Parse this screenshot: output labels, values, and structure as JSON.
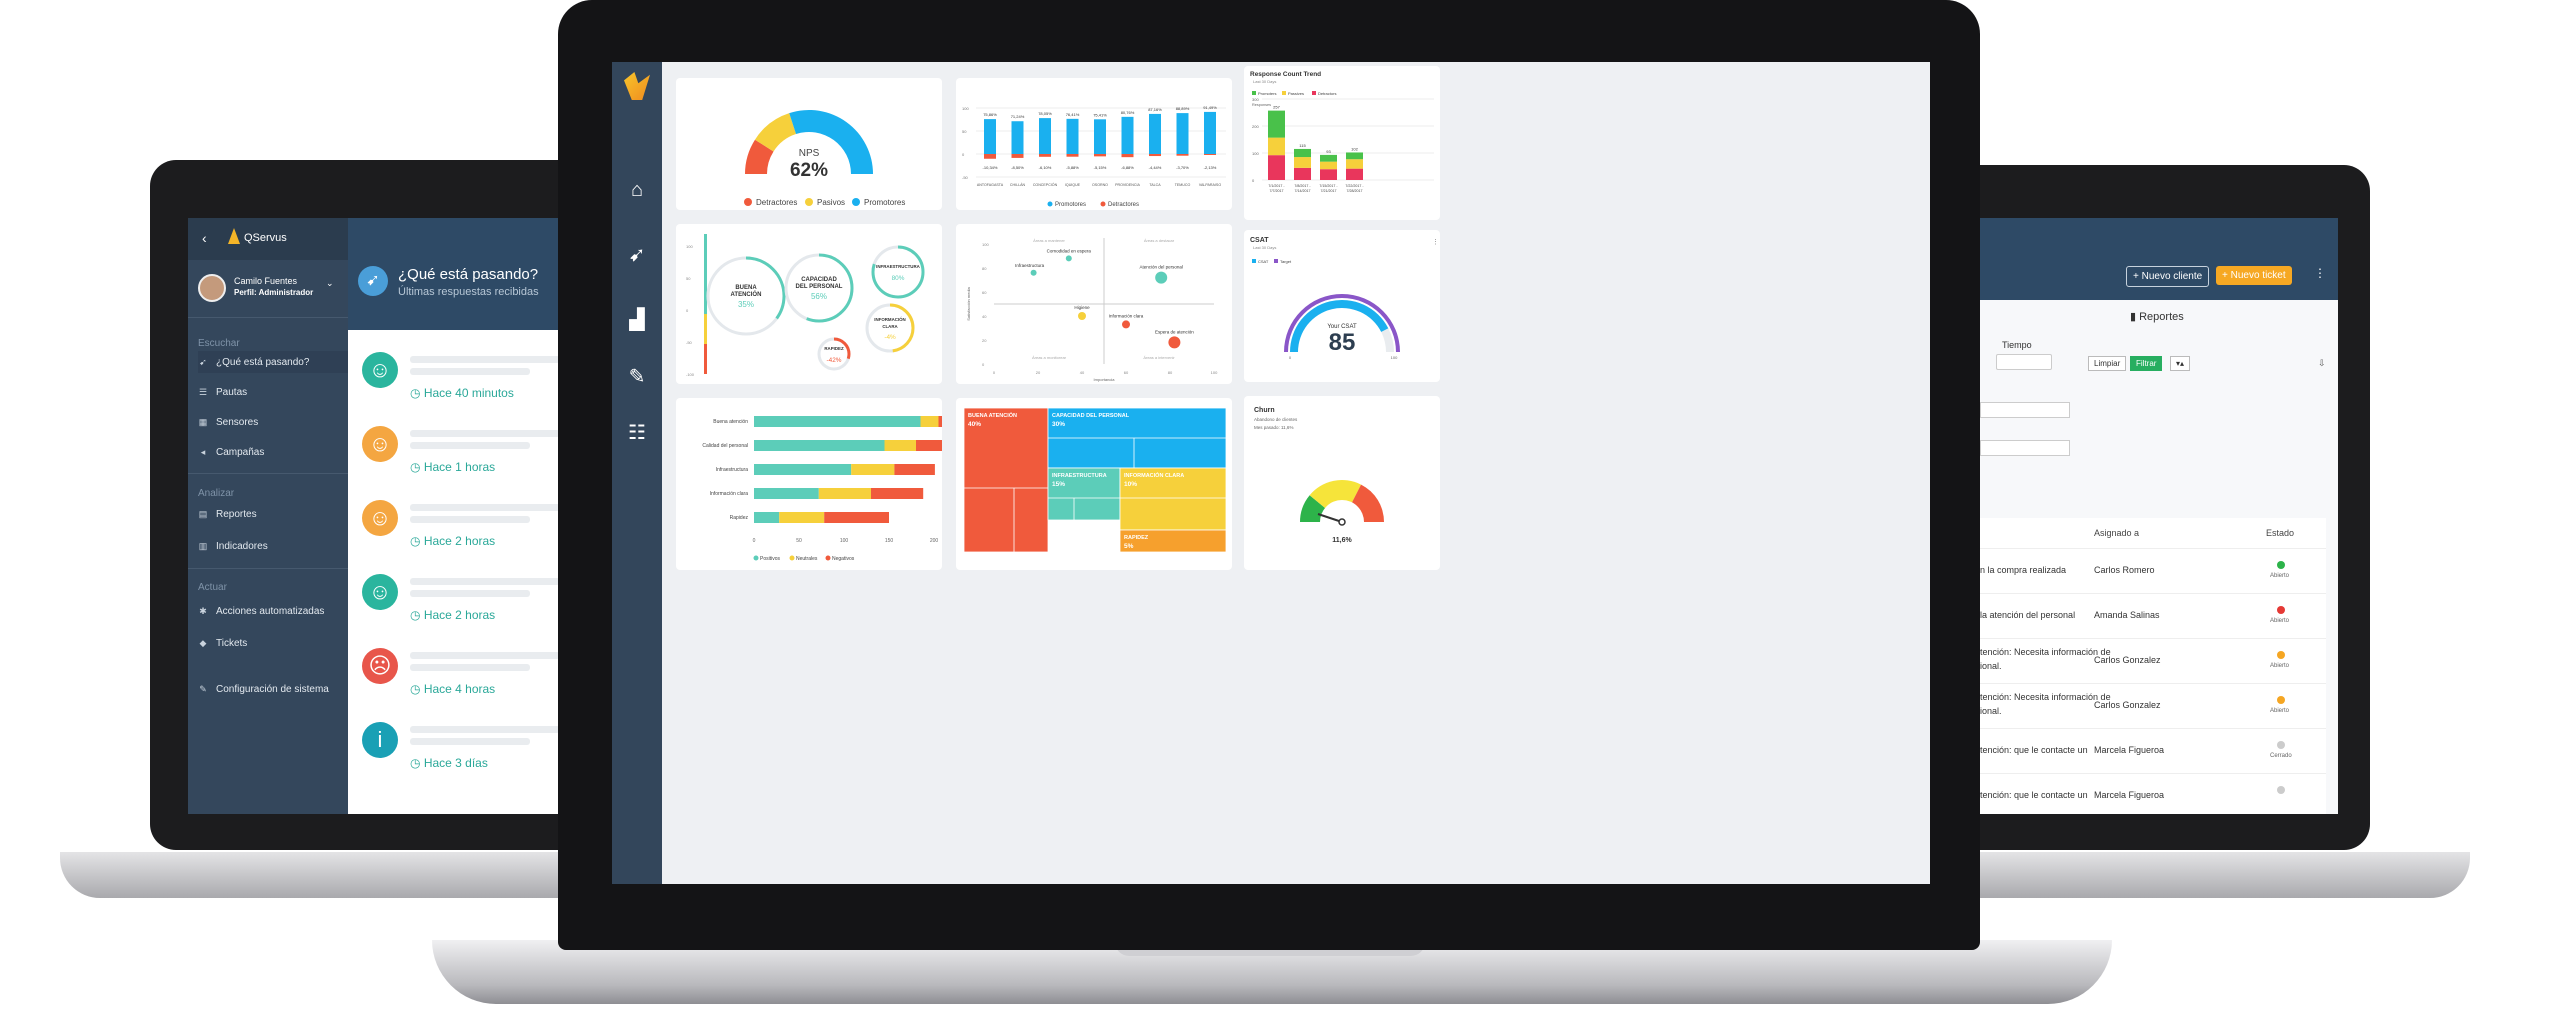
{
  "left_app": {
    "brand": "QServus",
    "user_name": "Camilo Fuentes",
    "user_role": "Perfil: Administrador",
    "header_title": "¿Qué está pasando?",
    "header_subtitle": "Últimas respuestas recibidas",
    "sections": {
      "escuchar": "Escuchar",
      "analizar": "Analizar",
      "actuar": "Actuar"
    },
    "nav": {
      "que_pasa": "¿Qué está pasando?",
      "pautas": "Pautas",
      "sensores": "Sensores",
      "campanas": "Campañas",
      "reportes": "Reportes",
      "indicadores": "Indicadores",
      "acciones": "Acciones automatizadas",
      "tickets": "Tickets",
      "config": "Configuración de sistema"
    },
    "feed": [
      {
        "time": "Hace 40 minutos",
        "mood": "happy",
        "color": "#2ab59e"
      },
      {
        "time": "Hace 1 horas",
        "mood": "neutral",
        "color": "#f4a641"
      },
      {
        "time": "Hace 2 horas",
        "mood": "neutral",
        "color": "#f4a641"
      },
      {
        "time": "Hace 2 horas",
        "mood": "happy",
        "color": "#2ab59e"
      },
      {
        "time": "Hace 4 horas",
        "mood": "sad",
        "color": "#e8564b"
      },
      {
        "time": "Hace 3 días",
        "mood": "info",
        "color": "#1aa0b5"
      }
    ]
  },
  "right_app": {
    "btn_nuevo_cliente": "+ Nuevo cliente",
    "btn_nuevo_ticket": "+ Nuevo ticket",
    "page_title": "Reportes",
    "tiempo_label": "Tiempo",
    "btn_limpiar": "Limpiar",
    "btn_filtrar": "Filtrar",
    "col_asignado": "Asignado a",
    "col_estado": "Estado",
    "rows": [
      {
        "desc": "n la compra realizada",
        "asignado": "Carlos Romero",
        "estado": "Abierto",
        "color": "#2db34a"
      },
      {
        "desc": "la atención del personal",
        "asignado": "Amanda Salinas",
        "estado": "Abierto",
        "color": "#e53935"
      },
      {
        "desc": "tención: Necesita información de",
        "desc2": "ional.",
        "asignado": "Carlos Gonzalez",
        "estado": "Abierto",
        "color": "#f5a623"
      },
      {
        "desc": "tención: Necesita información de",
        "desc2": "ional.",
        "asignado": "Carlos Gonzalez",
        "estado": "Abierto",
        "color": "#f5a623"
      },
      {
        "desc": "tención: que le contacte un",
        "asignado": "Marcela Figueroa",
        "estado": "Cerrado",
        "color": "#cccccc"
      },
      {
        "desc": "tención: que le contacte un",
        "asignado": "Marcela Figueroa",
        "estado": "",
        "color": "#cccccc"
      }
    ]
  },
  "colors": {
    "promotores": "#1ab0ef",
    "pasivos": "#f6d03b",
    "detractores": "#f05a3c",
    "positivos": "#5ccdb9",
    "neutrales": "#f6d03b",
    "negativos": "#f05a3c",
    "sidebar": "#33465b"
  },
  "nps": {
    "label": "NPS",
    "value": "62%",
    "legend": [
      "Detractores",
      "Pasivos",
      "Promotores"
    ]
  },
  "chart_data": [
    {
      "type": "bar",
      "id": "nps-by-city",
      "categories": [
        "ANTOFAGASTA",
        "CHILLÁN",
        "CONCEPCIÓN",
        "IQUIQUE",
        "OSORNO",
        "PROVIDENCIA",
        "TALCA",
        "TEMUCO",
        "VALPARAISO"
      ],
      "series": [
        {
          "name": "Promotores",
          "values": [
            75.86,
            71.24,
            78.05,
            76.41,
            75.41,
            80.76,
            87.16,
            88.89,
            91.49
          ],
          "labels": [
            "75,86%",
            "71,24%",
            "78,05%",
            "76,41%",
            "75,41%",
            "80,76%",
            "87,16%",
            "88,89%",
            "91,49%"
          ]
        },
        {
          "name": "Detractores",
          "values": [
            -10.34,
            -8.5,
            -6.1,
            -5.88,
            -5.15,
            -6.88,
            -4.44,
            -3.7,
            -2.13
          ],
          "labels": [
            "-10,34%",
            "-8,50%",
            "-6,10%",
            "-5,88%",
            "-5,15%",
            "-6,88%",
            "-4,44%",
            "-3,70%",
            "-2,13%"
          ]
        }
      ],
      "yticks": [
        "100",
        "50",
        "0",
        "-50"
      ],
      "legend": [
        "Promotores",
        "Detractores"
      ]
    },
    {
      "type": "bar",
      "id": "response-count-trend",
      "title": "Response Count Trend",
      "subtitle": "Last 30 Days",
      "legend": [
        "Promoters",
        "Passives",
        "Detractors"
      ],
      "ylabel": "Responses",
      "yticks": [
        "300",
        "200",
        "100",
        "0"
      ],
      "categories": [
        "7/1/2017 - 7/7/2017",
        "7/8/2017 - 7/14/2017",
        "7/15/2017 - 7/21/2017",
        "7/22/2017 - 7/28/2017"
      ],
      "totals": [
        257,
        115,
        93,
        102
      ],
      "series": [
        {
          "name": "Promoters",
          "values": [
            100,
            30,
            25,
            25
          ]
        },
        {
          "name": "Passives",
          "values": [
            65,
            40,
            28,
            35
          ]
        },
        {
          "name": "Detractors",
          "values": [
            92,
            45,
            40,
            42
          ]
        }
      ]
    },
    {
      "type": "scatter",
      "id": "priority-matrix",
      "xlabel": "Importancia",
      "ylabel": "Satisfacción media",
      "xticks": [
        "0",
        "20",
        "40",
        "60",
        "80",
        "100"
      ],
      "yticks": [
        "100",
        "80",
        "60",
        "40",
        "20",
        "0"
      ],
      "quadrants": [
        "Áreas a mantener",
        "Áreas a destacar",
        "Áreas a monitorear",
        "Áreas a intervenir"
      ],
      "points": [
        {
          "label": "Infraestructura",
          "x": 18,
          "y": 76,
          "color": "#5ccdb9",
          "r": 3
        },
        {
          "label": "Comodidad en espera",
          "x": 34,
          "y": 88,
          "color": "#5ccdb9",
          "r": 3
        },
        {
          "label": "Atención del personal",
          "x": 76,
          "y": 72,
          "color": "#5ccdb9",
          "r": 6
        },
        {
          "label": "Higiene",
          "x": 40,
          "y": 40,
          "color": "#f6d03b",
          "r": 4
        },
        {
          "label": "Información clara",
          "x": 60,
          "y": 33,
          "color": "#f05a3c",
          "r": 4
        },
        {
          "label": "Espera de atención",
          "x": 82,
          "y": 18,
          "color": "#f05a3c",
          "r": 6
        }
      ]
    },
    {
      "type": "gauge",
      "id": "csat",
      "title": "CSAT",
      "subtitle": "Last 30 Days",
      "legend": [
        "CSAT",
        "Target"
      ],
      "center_label": "Your CSAT",
      "value": 85,
      "min_label": "0",
      "max_label": "100"
    },
    {
      "type": "bubble",
      "id": "sentiment-bubbles",
      "yticks": [
        "100",
        "50",
        "0",
        "-50",
        "-100"
      ],
      "bubbles": [
        {
          "label1": "BUENA",
          "label2": "ATENCIÓN",
          "value": "35%"
        },
        {
          "label1": "CAPACIDAD",
          "label2": "DEL PERSONAL",
          "value": "56%"
        },
        {
          "label1": "INFRAESTRUCTURA",
          "label2": "",
          "value": "80%"
        },
        {
          "label1": "INFORMACIÓN",
          "label2": "CLARA",
          "value": "-4%"
        },
        {
          "label1": "RAPIDEZ",
          "label2": "",
          "value": "-42%"
        }
      ]
    },
    {
      "type": "bar",
      "id": "sentiment-horizontal",
      "orientation": "horizontal",
      "categories": [
        "Buena atención",
        "Calidad del personal",
        "Infraestructura",
        "Información clara",
        "Rapidez"
      ],
      "series": [
        {
          "name": "Positivos",
          "values": [
            185,
            145,
            108,
            72,
            28
          ]
        },
        {
          "name": "Neutrales",
          "values": [
            20,
            35,
            48,
            58,
            50
          ]
        },
        {
          "name": "Negativos",
          "values": [
            12,
            30,
            45,
            58,
            72
          ]
        }
      ],
      "xticks": [
        "0",
        "50",
        "100",
        "150",
        "200"
      ],
      "xlim": [
        0,
        210
      ],
      "legend": [
        "Positivos",
        "Neutrales",
        "Negativos"
      ]
    },
    {
      "type": "treemap",
      "id": "sentiment-treemap",
      "items": [
        {
          "label": "BUENA ATENCIÓN",
          "value": "40%"
        },
        {
          "label": "CAPACIDAD DEL PERSONAL",
          "value": "30%"
        },
        {
          "label": "INFRAESTRUCTURA",
          "value": "15%"
        },
        {
          "label": "INFORMACIÓN CLARA",
          "value": "10%"
        },
        {
          "label": "RAPIDEZ",
          "value": "5%"
        }
      ]
    },
    {
      "type": "gauge",
      "id": "churn",
      "title": "Churn",
      "subtitle": "Abandono de clientes",
      "note": "Mes pasado: 11,6%",
      "value_label": "11,6%",
      "value": 11.6
    }
  ]
}
